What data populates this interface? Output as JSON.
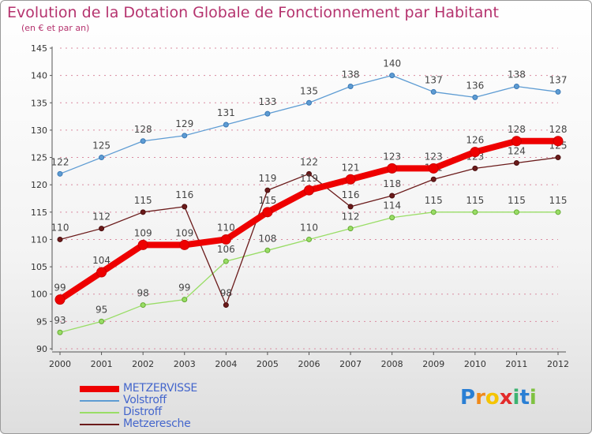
{
  "header": {
    "title": "Evolution de la Dotation Globale de Fonctionnement par Habitant",
    "subtitle": "(en € et par an)"
  },
  "colors": {
    "title": "#b5336e",
    "grid": "#d98aa0",
    "metzervisse": "#ee0000",
    "volstroff": "#5e9cd3",
    "distroff": "#99dd66",
    "metzeresche": "#6b1b1b",
    "legend_text": "#4466cc"
  },
  "chart_data": {
    "type": "line",
    "title": "Evolution de la Dotation Globale de Fonctionnement par Habitant",
    "subtitle": "(en € et par an)",
    "xlabel": "",
    "ylabel": "",
    "ylim": [
      90,
      145
    ],
    "yticks": [
      90,
      95,
      100,
      105,
      110,
      115,
      120,
      125,
      130,
      135,
      140,
      145
    ],
    "x": [
      "2000",
      "2001",
      "2002",
      "2003",
      "2004",
      "2005",
      "2006",
      "2007",
      "2008",
      "2009",
      "2010",
      "2011",
      "2012"
    ],
    "grid": true,
    "legend_position": "bottom-left",
    "series": [
      {
        "name": "METZERVISSE",
        "key": "metzervisse",
        "values": [
          99,
          104,
          109,
          109,
          110,
          115,
          119,
          121,
          123,
          123,
          126,
          128,
          128
        ]
      },
      {
        "name": "Volstroff",
        "key": "volstroff",
        "values": [
          122,
          125,
          128,
          129,
          131,
          133,
          135,
          138,
          140,
          137,
          136,
          138,
          137
        ]
      },
      {
        "name": "Distroff",
        "key": "distroff",
        "values": [
          93,
          95,
          98,
          99,
          106,
          108,
          110,
          112,
          114,
          115,
          115,
          115,
          115
        ]
      },
      {
        "name": "Metzeresche",
        "key": "metzeresche",
        "values": [
          110,
          112,
          115,
          116,
          98,
          119,
          122,
          116,
          118,
          121,
          123,
          124,
          125
        ]
      }
    ]
  },
  "legend": {
    "items": [
      "METZERVISSE",
      "Volstroff",
      "Distroff",
      "Metzeresche"
    ]
  },
  "logo": {
    "letters": [
      "P",
      "r",
      "o",
      "x",
      "i",
      "t",
      "i"
    ],
    "colors": [
      "#2a7fd4",
      "#f08a1a",
      "#f5c400",
      "#e32b2b",
      "#3cb371",
      "#2a7fd4",
      "#7fc241"
    ]
  }
}
